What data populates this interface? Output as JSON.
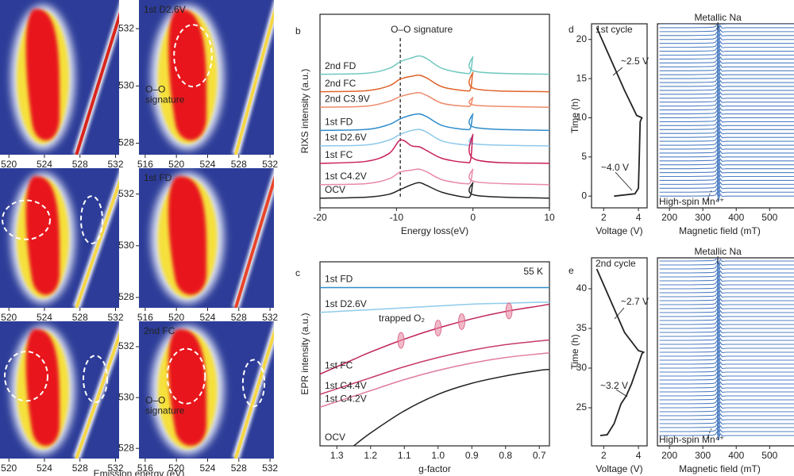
{
  "left_xlabel": "Emission energy (eV)",
  "chart_data": [
    {
      "type": "heatmap",
      "xlim": [
        519,
        532.4
      ],
      "xticks": [
        520,
        524,
        528,
        532
      ],
      "ylim": [
        527.6,
        533
      ],
      "line_color": "#d8261c"
    },
    {
      "type": "heatmap",
      "title": "1st D2.6V",
      "annotation": [
        "O–O",
        "signature"
      ],
      "xlim": [
        515.2,
        532.5
      ],
      "xticks": [
        516,
        520,
        524,
        528,
        532
      ],
      "ylim": [
        527.6,
        533
      ],
      "yticks": [
        528,
        530,
        532
      ],
      "line_color": "#f5d646"
    },
    {
      "type": "heatmap",
      "xlim": [
        519,
        532.4
      ],
      "xticks": [
        520,
        524,
        528,
        532
      ],
      "ylim": [
        527.6,
        533
      ],
      "line_color": "#f5d646"
    },
    {
      "type": "heatmap",
      "title": "1st FD",
      "xlim": [
        515.2,
        532.5
      ],
      "xticks": [
        516,
        520,
        524,
        528,
        532
      ],
      "ylim": [
        527.6,
        533
      ],
      "yticks": [
        528,
        530,
        532
      ],
      "line_color": "#e8452a"
    },
    {
      "type": "heatmap",
      "xlim": [
        519,
        532.4
      ],
      "xticks": [
        520,
        524,
        528,
        532
      ],
      "ylim": [
        527.6,
        533
      ],
      "line_color": "#f5d646"
    },
    {
      "type": "heatmap",
      "title": "2nd FC",
      "annotation": [
        "O–O",
        "signature"
      ],
      "xlim": [
        515.2,
        532.5
      ],
      "xticks": [
        516,
        520,
        524,
        528,
        532
      ],
      "ylim": [
        527.6,
        533
      ],
      "yticks": [
        528,
        530,
        532
      ],
      "line_color": "#f5d646"
    },
    {
      "type": "line",
      "panel_label": "b",
      "xlabel": "Energy loss(eV)",
      "ylabel": "RIXS intensity (a.u.)",
      "smooth": true,
      "annotation": "O–O signature",
      "annotation_x": -9.5,
      "xlim": [
        -20,
        10
      ],
      "xticks": [
        -20,
        -10,
        0,
        10
      ],
      "ylim": [
        0,
        10
      ],
      "x": [
        -20,
        -14,
        -11,
        -9.5,
        -8,
        -7,
        -6,
        -4,
        -1,
        -0.3,
        0,
        0.3,
        10
      ],
      "series": [
        {
          "name": "2nd FD",
          "color": "#6fc7bf",
          "values": [
            6.9,
            6.95,
            7.2,
            7.55,
            7.75,
            7.85,
            7.7,
            7.2,
            6.95,
            7.05,
            7.8,
            7.05,
            6.9
          ]
        },
        {
          "name": "2nd FC",
          "color": "#e0632a",
          "values": [
            6.0,
            6.05,
            6.3,
            6.65,
            6.8,
            6.85,
            6.7,
            6.25,
            6.05,
            6.15,
            7.0,
            6.15,
            6.0
          ]
        },
        {
          "name": "2nd C3.9V",
          "color": "#ee8a6a",
          "values": [
            5.2,
            5.25,
            5.5,
            5.75,
            5.9,
            5.95,
            5.8,
            5.4,
            5.25,
            5.3,
            5.7,
            5.3,
            5.2
          ]
        },
        {
          "name": "1st FD",
          "color": "#2f8ccb",
          "values": [
            4.0,
            4.05,
            4.3,
            4.6,
            4.8,
            4.85,
            4.7,
            4.25,
            4.05,
            4.15,
            4.85,
            4.15,
            4.0
          ]
        },
        {
          "name": "1st D2.6V",
          "color": "#8fc9ea",
          "values": [
            3.2,
            3.25,
            3.5,
            3.8,
            4.0,
            4.05,
            3.9,
            3.45,
            3.25,
            3.3,
            3.7,
            3.3,
            3.2
          ]
        },
        {
          "name": "1st FC",
          "color": "#c8205a",
          "values": [
            2.3,
            2.4,
            2.8,
            3.5,
            3.2,
            3.15,
            2.95,
            2.55,
            2.35,
            2.5,
            3.8,
            2.5,
            2.3
          ]
        },
        {
          "name": "1st C4.2V",
          "color": "#e88aa8",
          "values": [
            1.2,
            1.25,
            1.5,
            1.85,
            1.95,
            2.0,
            1.85,
            1.45,
            1.25,
            1.35,
            2.0,
            1.35,
            1.2
          ]
        },
        {
          "name": "OCV",
          "color": "#222222",
          "values": [
            0.5,
            0.55,
            0.7,
            0.95,
            1.2,
            1.3,
            1.15,
            0.8,
            0.55,
            0.65,
            1.3,
            0.65,
            0.5
          ]
        }
      ]
    },
    {
      "type": "line",
      "panel_label": "c",
      "xlabel": "g-factor",
      "ylabel": "EPR intensity (a.u.)",
      "smooth": true,
      "annotation": "55 K",
      "trapped_label": "trapped O₂",
      "trapped_o2": [
        1.11,
        1.0,
        0.93,
        0.79
      ],
      "xlim": [
        1.35,
        0.67
      ],
      "xticks": [
        1.3,
        1.2,
        1.1,
        {
          "value": 1,
          "label": "1.0"
        },
        0.9,
        0.8,
        0.7
      ],
      "ylim": [
        0,
        10
      ],
      "x": [
        1.35,
        1.3,
        1.25,
        1.2,
        1.1,
        1.0,
        0.9,
        0.8,
        0.7,
        0.67
      ],
      "series": [
        {
          "name": "1st FD",
          "color": "#2e8dc8",
          "values": [
            8.6,
            8.6,
            8.6,
            8.6,
            8.6,
            8.6,
            8.6,
            8.6,
            8.6,
            8.6
          ]
        },
        {
          "name": "1st D2.6V",
          "color": "#8fcbea",
          "values": [
            7.25,
            7.3,
            7.35,
            7.4,
            7.5,
            7.6,
            7.7,
            7.75,
            7.8,
            7.8
          ]
        },
        {
          "name": "1st FC",
          "color": "#c02058",
          "values": [
            3.9,
            4.3,
            4.7,
            5.1,
            5.8,
            6.4,
            6.9,
            7.3,
            7.6,
            7.7
          ]
        },
        {
          "name": "1st C4.4V",
          "color": "#c73a6b",
          "values": [
            2.8,
            3.1,
            3.4,
            3.7,
            4.3,
            4.8,
            5.2,
            5.5,
            5.7,
            5.75
          ]
        },
        {
          "name": "1st C4.2V",
          "color": "#e07ca3",
          "values": [
            2.1,
            2.4,
            2.7,
            3.0,
            3.6,
            4.1,
            4.5,
            4.8,
            5.0,
            5.05
          ]
        },
        {
          "name": "OCV",
          "color": "#222222",
          "values": [
            null,
            null,
            0,
            0.7,
            1.9,
            2.8,
            3.4,
            3.8,
            4.1,
            4.15
          ]
        }
      ]
    },
    {
      "type": "line",
      "panel_label": "d",
      "xlabel": "Voltage (V)",
      "ylabel": "Time (h)",
      "cycle_label": "1st cycle",
      "annotations": [
        "~2.5 V",
        "~4.0 V"
      ],
      "xlim": [
        1.3,
        4.5
      ],
      "xticks": [
        2,
        4
      ],
      "ylim": [
        -1.5,
        22
      ],
      "yticks": [
        0,
        5,
        10,
        15,
        20
      ],
      "series": [
        {
          "color": "#222222",
          "x": [
            2.6,
            3.8,
            4.0,
            4.05,
            4.1,
            4.2,
            3.9,
            3.2,
            2.5,
            2.0,
            1.6
          ],
          "values": [
            0,
            0.3,
            1,
            5,
            9.5,
            10,
            10.3,
            13.5,
            17,
            19.5,
            21.5
          ]
        }
      ]
    },
    {
      "type": "stack",
      "xlabel": "Magnetic field (mT)",
      "top_annotation": "Metallic Na",
      "annotation_x": 345,
      "bottom_annotation": "High-spin Mn⁴⁺",
      "xlim": [
        164,
        573
      ],
      "xticks": [
        200,
        300,
        400,
        500
      ],
      "ylim": [
        -1.5,
        22
      ],
      "color": "#4f7fc4",
      "profile": {
        "x": [
          170,
          260,
          310,
          330,
          338,
          343,
          347,
          352,
          358,
          370,
          400,
          480,
          580
        ],
        "values": [
          0,
          0,
          0.03,
          0.06,
          0.15,
          0.5,
          -0.6,
          0.25,
          -0.05,
          0,
          0,
          0,
          0
        ]
      },
      "trace_times": [
        0,
        0.5,
        1,
        1.5,
        2,
        2.5,
        3,
        3.5,
        4,
        4.5,
        5,
        5.5,
        6,
        6.5,
        7,
        7.5,
        8,
        8.5,
        9,
        9.5,
        10,
        10.5,
        11,
        11.5,
        12,
        12.5,
        13,
        13.5,
        14,
        14.5,
        15,
        15.5,
        16,
        16.5,
        17,
        17.5,
        18,
        18.5,
        19,
        19.5,
        20,
        20.5,
        21,
        21.5,
        22
      ]
    },
    {
      "type": "line",
      "panel_label": "e",
      "xlabel": "Voltage (V)",
      "ylabel": "Time (h)",
      "cycle_label": "2nd cycle",
      "annotations": [
        "~2.7 V",
        "~3.2 V"
      ],
      "xlim": [
        1.3,
        4.5
      ],
      "xticks": [
        2,
        4
      ],
      "ylim": [
        20.2,
        43.9
      ],
      "yticks": [
        25,
        30,
        35,
        40
      ],
      "series": [
        {
          "color": "#222222",
          "x": [
            1.8,
            2.2,
            2.6,
            3.0,
            3.3,
            3.6,
            4.0,
            4.2,
            4.3,
            4.0,
            3.2,
            2.5,
            2.0,
            1.6
          ],
          "values": [
            21.5,
            21.6,
            23,
            25.5,
            26.5,
            28,
            30.5,
            31.8,
            32,
            32.2,
            34.5,
            38,
            40.5,
            42.5
          ]
        }
      ]
    },
    {
      "type": "stack",
      "xlabel": "Magnetic field (mT)",
      "top_annotation": "Metallic Na",
      "annotation_x": 345,
      "bottom_annotation": "High-spin Mn⁴⁺",
      "xlim": [
        164,
        573
      ],
      "xticks": [
        200,
        300,
        400,
        500
      ],
      "ylim": [
        20.2,
        43.9
      ],
      "color": "#4f7fc4",
      "profile": {
        "x": [
          170,
          260,
          310,
          330,
          338,
          343,
          347,
          352,
          358,
          370,
          400,
          480,
          580
        ],
        "values": [
          0,
          0,
          0.03,
          0.06,
          0.15,
          0.5,
          -0.6,
          0.25,
          -0.05,
          0,
          0,
          0,
          0
        ]
      },
      "trace_times": [
        21.5,
        22,
        22.5,
        23,
        23.5,
        24,
        24.5,
        25,
        25.5,
        26,
        26.5,
        27,
        27.5,
        28,
        28.5,
        29,
        29.5,
        30,
        30.5,
        31,
        31.5,
        32,
        32.5,
        33,
        33.5,
        34,
        34.5,
        35,
        35.5,
        36,
        36.5,
        37,
        37.5,
        38,
        38.5,
        39,
        39.5,
        40,
        40.5,
        41,
        41.5,
        42,
        42.5,
        43,
        43.5
      ]
    }
  ]
}
